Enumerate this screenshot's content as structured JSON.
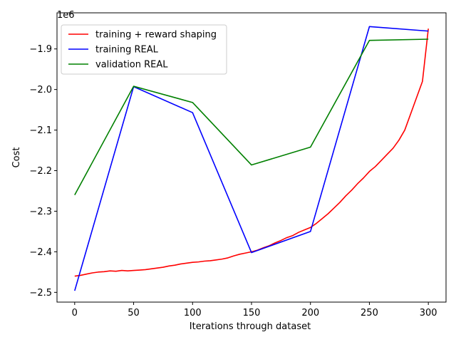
{
  "chart_data": {
    "type": "line",
    "xlabel": "Iterations through dataset",
    "ylabel": "Cost",
    "offset_text": "1e6",
    "xlim": [
      -15,
      315
    ],
    "ylim": [
      -2524000,
      -1811000
    ],
    "xticks": [
      0,
      50,
      100,
      150,
      200,
      250,
      300
    ],
    "xtick_labels": [
      "0",
      "50",
      "100",
      "150",
      "200",
      "250",
      "300"
    ],
    "yticks": [
      -2500000,
      -2400000,
      -2300000,
      -2200000,
      -2100000,
      -2000000,
      -1900000
    ],
    "ytick_labels": [
      "−2.5",
      "−2.4",
      "−2.3",
      "−2.2",
      "−2.1",
      "−2.0",
      "−1.9"
    ],
    "legend_position": "top-left",
    "series": [
      {
        "name": "training + reward shaping",
        "color": "#ff0000",
        "x": [
          0,
          5,
          10,
          15,
          20,
          25,
          30,
          35,
          40,
          45,
          50,
          55,
          60,
          65,
          70,
          75,
          80,
          85,
          90,
          95,
          100,
          105,
          110,
          115,
          120,
          125,
          130,
          135,
          140,
          145,
          150,
          155,
          160,
          165,
          170,
          175,
          180,
          185,
          190,
          195,
          200,
          205,
          210,
          215,
          220,
          225,
          230,
          235,
          240,
          245,
          250,
          255,
          260,
          265,
          270,
          275,
          280,
          285,
          290,
          295,
          300
        ],
        "y": [
          -2460000,
          -2458000,
          -2455000,
          -2452000,
          -2450000,
          -2449000,
          -2447000,
          -2448000,
          -2446000,
          -2447000,
          -2446000,
          -2445000,
          -2444000,
          -2442000,
          -2440000,
          -2438000,
          -2435000,
          -2433000,
          -2430000,
          -2428000,
          -2426000,
          -2425000,
          -2423000,
          -2422000,
          -2420000,
          -2418000,
          -2415000,
          -2410000,
          -2406000,
          -2403000,
          -2400000,
          -2396000,
          -2390000,
          -2385000,
          -2378000,
          -2372000,
          -2365000,
          -2360000,
          -2352000,
          -2346000,
          -2340000,
          -2330000,
          -2318000,
          -2306000,
          -2292000,
          -2278000,
          -2262000,
          -2248000,
          -2232000,
          -2218000,
          -2202000,
          -2190000,
          -2175000,
          -2160000,
          -2145000,
          -2125000,
          -2100000,
          -2060000,
          -2020000,
          -1980000,
          -1850000
        ]
      },
      {
        "name": "training REAL",
        "color": "#0000ff",
        "x": [
          0,
          50,
          100,
          150,
          200,
          250,
          300
        ],
        "y": [
          -2496000,
          -1993000,
          -2057000,
          -2402000,
          -2350000,
          -1845000,
          -1856000
        ]
      },
      {
        "name": "validation REAL",
        "color": "#008000",
        "x": [
          0,
          50,
          100,
          150,
          200,
          250,
          300
        ],
        "y": [
          -2260000,
          -1992000,
          -2032000,
          -2186000,
          -2142000,
          -1879000,
          -1876000
        ]
      }
    ]
  }
}
